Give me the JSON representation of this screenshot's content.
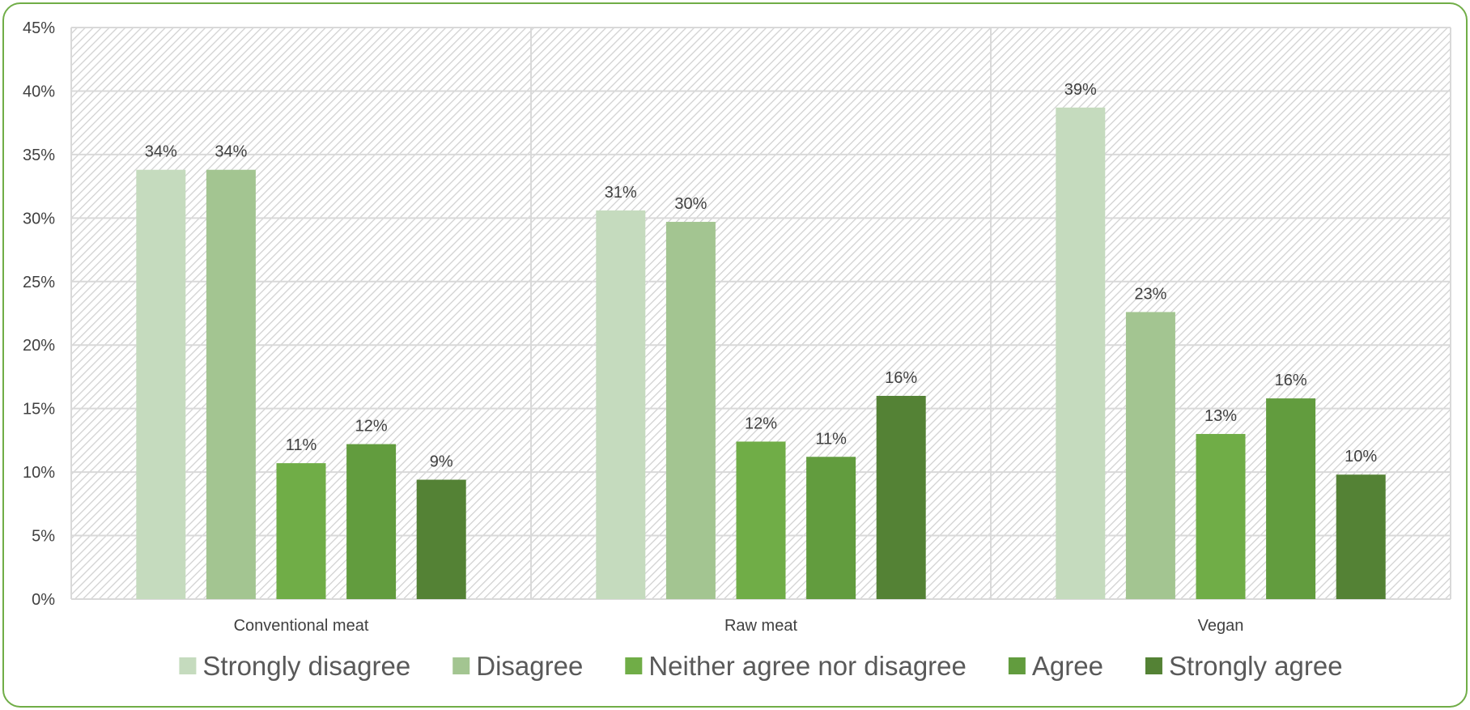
{
  "chart_data": {
    "type": "bar",
    "title": "",
    "xlabel": "",
    "ylabel": "",
    "ylim": [
      0,
      45
    ],
    "y_tick_step": 5,
    "y_tick_format": "percent",
    "grid": true,
    "legend_position": "bottom",
    "categories": [
      "Conventional meat",
      "Raw meat",
      "Vegan"
    ],
    "series": [
      {
        "name": "Strongly disagree",
        "color": "#c5dbbe",
        "values": [
          34,
          31,
          39
        ],
        "plotted": [
          33.8,
          30.6,
          38.7
        ],
        "labels": [
          "34%",
          "31%",
          "39%"
        ]
      },
      {
        "name": "Disagree",
        "color": "#a3c591",
        "values": [
          34,
          30,
          23
        ],
        "plotted": [
          33.8,
          29.7,
          22.6
        ],
        "labels": [
          "34%",
          "30%",
          "23%"
        ]
      },
      {
        "name": "Neither agree nor disagree",
        "color": "#70ad47",
        "values": [
          11,
          12,
          13
        ],
        "plotted": [
          10.7,
          12.4,
          13.0
        ],
        "labels": [
          "11%",
          "12%",
          "13%"
        ]
      },
      {
        "name": "Agree",
        "color": "#629c3e",
        "values": [
          12,
          11,
          16
        ],
        "plotted": [
          12.2,
          11.2,
          15.8
        ],
        "labels": [
          "12%",
          "11%",
          "16%"
        ]
      },
      {
        "name": "Strongly agree",
        "color": "#548235",
        "values": [
          9,
          16,
          10
        ],
        "plotted": [
          9.4,
          16.0,
          9.8
        ],
        "labels": [
          "9%",
          "16%",
          "10%"
        ]
      }
    ]
  }
}
